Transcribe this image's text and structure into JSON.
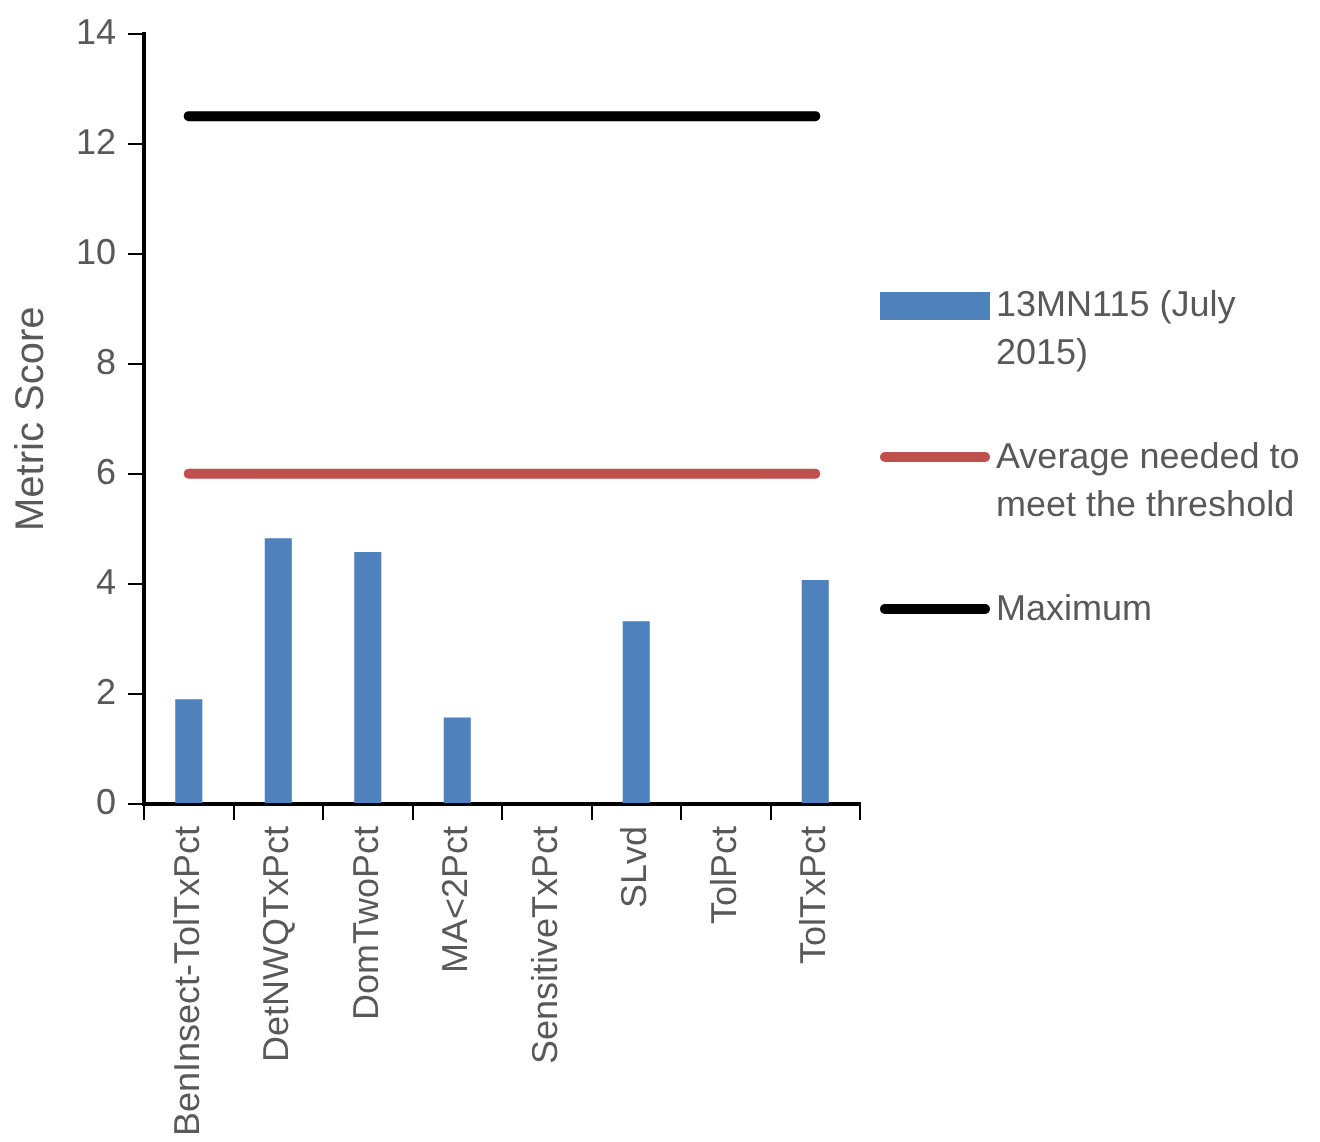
{
  "chart_data": {
    "type": "bar",
    "ylabel": "Metric Score",
    "categories": [
      "BenInsect-TolTxPct",
      "DetNWQTxPct",
      "DomTwoPct",
      "MA<2Pct",
      "SensitiveTxPct",
      "SLvd",
      "TolPct",
      "TolTxPct"
    ],
    "series": [
      {
        "name": "13MN115 (July 2015)",
        "color": "#4f81bd",
        "values": [
          1.9,
          4.83,
          4.58,
          1.57,
          0,
          3.32,
          0,
          4.07
        ]
      },
      {
        "name": "Average needed to meet the threshold",
        "type": "line",
        "color": "#c0504d",
        "values": [
          6,
          6,
          6,
          6,
          6,
          6,
          6,
          6
        ]
      },
      {
        "name": "Maximum",
        "type": "line",
        "color": "#000000",
        "values": [
          12.5,
          12.5,
          12.5,
          12.5,
          12.5,
          12.5,
          12.5,
          12.5
        ]
      }
    ],
    "ylim": [
      0,
      14
    ],
    "yticks": [
      0,
      2,
      4,
      6,
      8,
      10,
      12,
      14
    ],
    "grid": false,
    "legend": "right",
    "marker": "none"
  }
}
